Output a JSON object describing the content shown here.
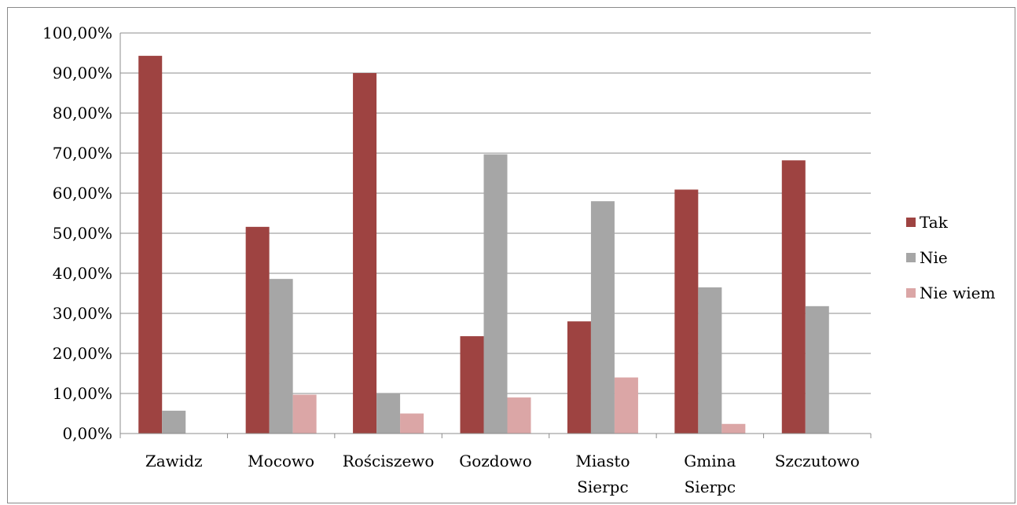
{
  "chart_data": {
    "type": "bar",
    "categories": [
      [
        "Zawidz"
      ],
      [
        "Mocowo"
      ],
      [
        "Rościszewo"
      ],
      [
        "Gozdowo"
      ],
      [
        "Miasto",
        "Sierpc"
      ],
      [
        "Gmina",
        "Sierpc"
      ],
      [
        "Szczutowo"
      ]
    ],
    "series": [
      {
        "name": "Tak",
        "color": "#9e4341",
        "values": [
          0.943,
          0.516,
          0.9,
          0.243,
          0.28,
          0.609,
          0.682
        ]
      },
      {
        "name": "Nie",
        "color": "#a6a6a6",
        "values": [
          0.057,
          0.386,
          0.1,
          0.697,
          0.58,
          0.365,
          0.318
        ]
      },
      {
        "name": "Nie wiem",
        "color": "#dba6a6",
        "values": [
          0.0,
          0.097,
          0.05,
          0.09,
          0.14,
          0.024,
          0.0
        ]
      }
    ],
    "ylim": [
      0,
      1
    ],
    "yticks": [
      "0,00%",
      "10,00%",
      "20,00%",
      "30,00%",
      "40,00%",
      "50,00%",
      "60,00%",
      "70,00%",
      "80,00%",
      "90,00%",
      "100,00%"
    ],
    "grid": true,
    "legend_position": "right"
  }
}
